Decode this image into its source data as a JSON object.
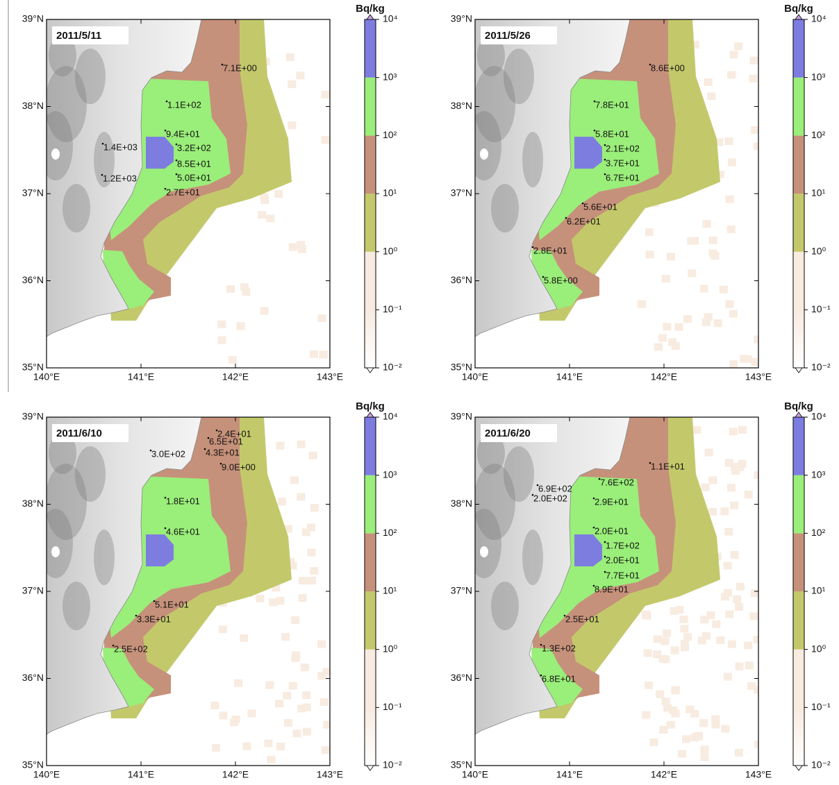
{
  "colorbar": {
    "title": "Bq/kg",
    "ticks": [
      {
        "value": 0.01,
        "label": "10⁻²"
      },
      {
        "value": 0.1,
        "label": "10⁻¹"
      },
      {
        "value": 1,
        "label": "10⁰"
      },
      {
        "value": 10,
        "label": "10¹"
      },
      {
        "value": 100,
        "label": "10²"
      },
      {
        "value": 1000,
        "label": "10³"
      },
      {
        "value": 10000,
        "label": "10⁴"
      }
    ],
    "colors": [
      "#ffffff",
      "#f8ebe0",
      "#c3c96b",
      "#c6917a",
      "#9aee7a",
      "#7d7de0"
    ],
    "log": true
  },
  "lon_range": [
    140,
    143
  ],
  "lat_range": [
    35,
    39
  ],
  "lon_ticks": [
    {
      "value": 140,
      "label": "140°E"
    },
    {
      "value": 141,
      "label": "141°E"
    },
    {
      "value": 142,
      "label": "142°E"
    },
    {
      "value": 143,
      "label": "143°E"
    }
  ],
  "lat_ticks": [
    {
      "value": 35,
      "label": "35°N"
    },
    {
      "value": 36,
      "label": "36°N"
    },
    {
      "value": 37,
      "label": "37°N"
    },
    {
      "value": 38,
      "label": "38°N"
    },
    {
      "value": 39,
      "label": "39°N"
    }
  ],
  "panels": [
    {
      "date": "2011/5/11",
      "labels": [
        "7.1E+00",
        "1.1E+02",
        "9.4E+01",
        "1.4E+03",
        "3.2E+02",
        "8.5E+01",
        "5.0E+01",
        "1.2E+03",
        "2.7E+01"
      ]
    },
    {
      "date": "2011/5/26",
      "labels": [
        "8.6E+00",
        "7.8E+01",
        "5.8E+01",
        "2.1E+02",
        "3.7E+01",
        "6.7E+01",
        "5.6E+01",
        "6.2E+01",
        "2.8E+01",
        "5.8E+00"
      ]
    },
    {
      "date": "2011/6/10",
      "labels": [
        "2.4E+01",
        "6.5E+01",
        "3.0E+02",
        "4.3E+01",
        "9.0E+00",
        "1.8E+01",
        "4.6E+01",
        "5.1E+01",
        "3.3E+01",
        "2.5E+02"
      ]
    },
    {
      "date": "2011/6/20",
      "labels": [
        "1.1E+01",
        "6.9E+02",
        "7.6E+02",
        "2.0E+02",
        "2.9E+01",
        "2.0E+01",
        "1.7E+02",
        "2.0E+01",
        "7.7E+01",
        "8.9E+01",
        "2.5E+01",
        "1.3E+02",
        "6.8E+01"
      ]
    }
  ]
}
